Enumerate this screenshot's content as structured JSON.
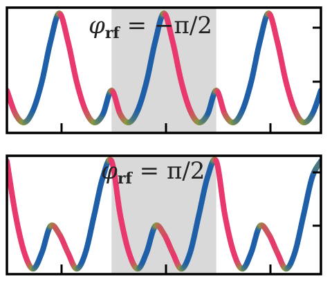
{
  "chart_data": [
    {
      "type": "line",
      "title_symbol": "φ",
      "title_subscript": "rf",
      "title_rest": " = −π/2",
      "xlim": [
        0,
        3
      ],
      "ylim": [
        -1.05,
        2.05
      ],
      "shaded_region": [
        1,
        2
      ],
      "shade_color": "#d9d9d9",
      "grid": false,
      "x": [
        0,
        0.0833,
        0.1667,
        0.25,
        0.3333,
        0.4167,
        0.5,
        0.5833,
        0.6667,
        0.75,
        0.8333,
        0.9167,
        1.0,
        1.0833,
        1.1667,
        1.25,
        1.3333,
        1.4167,
        1.5,
        1.5833,
        1.6667,
        1.75,
        1.8333,
        1.9167,
        2.0,
        2.0833,
        2.1667,
        2.25,
        2.3333,
        2.4167,
        2.5,
        2.5833,
        2.6667,
        2.75,
        2.8333,
        2.9167,
        3.0
      ],
      "y": [
        0.0,
        -0.59,
        -0.79,
        -0.49,
        0.21,
        1.21,
        1.91,
        1.21,
        0.21,
        -0.49,
        -0.79,
        -0.59,
        0.0,
        -0.59,
        -0.79,
        -0.49,
        0.21,
        1.21,
        1.91,
        1.21,
        0.21,
        -0.49,
        -0.79,
        -0.59,
        0.0,
        -0.59,
        -0.79,
        -0.49,
        0.21,
        1.21,
        1.91,
        1.21,
        0.21,
        -0.49,
        -0.79,
        -0.59,
        0.0
      ],
      "rising_color": "#1f5fa8",
      "falling_color": "#e8386d",
      "turn_color": "#8a9a3c"
    },
    {
      "type": "line",
      "title_symbol": "φ",
      "title_subscript": "rf",
      "title_rest": " = π/2",
      "xlim": [
        0,
        3
      ],
      "ylim": [
        -1.05,
        2.05
      ],
      "shaded_region": [
        1,
        2
      ],
      "shade_color": "#d9d9d9",
      "grid": false,
      "x": [
        0,
        0.0833,
        0.1667,
        0.25,
        0.3333,
        0.4167,
        0.5,
        0.5833,
        0.6667,
        0.75,
        0.8333,
        0.9167,
        1.0,
        1.0833,
        1.1667,
        1.25,
        1.3333,
        1.4167,
        1.5,
        1.5833,
        1.6667,
        1.75,
        1.8333,
        1.9167,
        2.0,
        2.0833,
        2.1667,
        2.25,
        2.3333,
        2.4167,
        2.5,
        2.5833,
        2.6667,
        2.75,
        2.8333,
        2.9167,
        3.0
      ],
      "y": [
        1.91,
        0.49,
        -0.49,
        -0.91,
        -0.49,
        0.21,
        0.0,
        -0.49,
        -0.91,
        -0.49,
        0.49,
        1.49,
        1.91,
        0.49,
        -0.49,
        -0.91,
        -0.49,
        0.21,
        0.0,
        -0.49,
        -0.91,
        -0.49,
        0.49,
        1.49,
        1.91,
        0.49,
        -0.49,
        -0.91,
        -0.49,
        0.21,
        0.0,
        -0.49,
        -0.91,
        -0.49,
        0.49,
        1.49,
        1.91
      ],
      "rising_color": "#1f5fa8",
      "falling_color": "#e8386d",
      "turn_color": "#8a9a3c"
    }
  ]
}
